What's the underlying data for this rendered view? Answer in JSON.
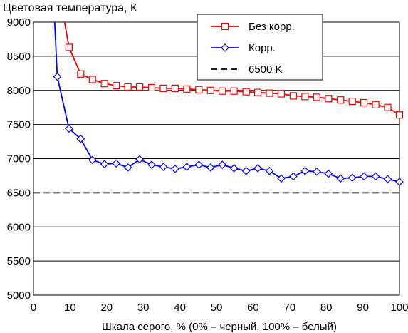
{
  "chart_data": {
    "type": "line",
    "title": "Цветовая температура, К",
    "xlabel": "Шкала серого, % (0% – черный, 100% – белый)",
    "ylabel": "",
    "xlim": [
      0,
      100
    ],
    "ylim": [
      5000,
      9000
    ],
    "x_ticks": [
      "0",
      "10",
      "20",
      "30",
      "40",
      "50",
      "60",
      "70",
      "80",
      "90",
      "100"
    ],
    "y_ticks": [
      "5000",
      "5500",
      "6000",
      "6500",
      "7000",
      "7500",
      "8000",
      "8500",
      "9000"
    ],
    "grid": true,
    "legend_position": "top-right",
    "series": [
      {
        "name": "Без корр.",
        "color": "#ff0000",
        "marker": "square",
        "dash": "solid",
        "x": [
          8.5,
          9.7,
          12.9,
          16.1,
          19.4,
          22.6,
          25.8,
          29.0,
          32.3,
          35.5,
          38.7,
          41.9,
          45.2,
          48.4,
          51.6,
          54.8,
          58.1,
          61.3,
          64.5,
          67.7,
          71.0,
          74.2,
          77.4,
          80.6,
          83.9,
          87.1,
          90.3,
          93.5,
          96.8,
          100
        ],
        "y": [
          9000,
          8630,
          8240,
          8160,
          8100,
          8070,
          8050,
          8050,
          8040,
          8030,
          8030,
          8020,
          8010,
          8000,
          7990,
          7990,
          7980,
          7970,
          7960,
          7950,
          7920,
          7910,
          7900,
          7880,
          7860,
          7840,
          7820,
          7790,
          7750,
          7640
        ]
      },
      {
        "name": "Корр.",
        "color": "#0000ff",
        "marker": "diamond",
        "dash": "solid",
        "x": [
          5.8,
          6.5,
          9.7,
          12.9,
          16.1,
          19.4,
          22.6,
          25.8,
          29.0,
          32.3,
          35.5,
          38.7,
          41.9,
          45.2,
          48.4,
          51.6,
          54.8,
          58.1,
          61.3,
          64.5,
          67.7,
          71.0,
          74.2,
          77.4,
          80.6,
          83.9,
          87.1,
          90.3,
          93.5,
          96.8,
          100
        ],
        "y": [
          9000,
          8200,
          7440,
          7290,
          6980,
          6920,
          6930,
          6870,
          6990,
          6910,
          6880,
          6850,
          6880,
          6910,
          6870,
          6910,
          6860,
          6820,
          6860,
          6820,
          6710,
          6740,
          6820,
          6810,
          6780,
          6710,
          6720,
          6740,
          6740,
          6700,
          6660
        ]
      },
      {
        "name": "6500 K",
        "color": "#000000",
        "marker": "none",
        "dash": "dashed",
        "x": [
          0,
          100
        ],
        "y": [
          6500,
          6500
        ]
      }
    ]
  }
}
